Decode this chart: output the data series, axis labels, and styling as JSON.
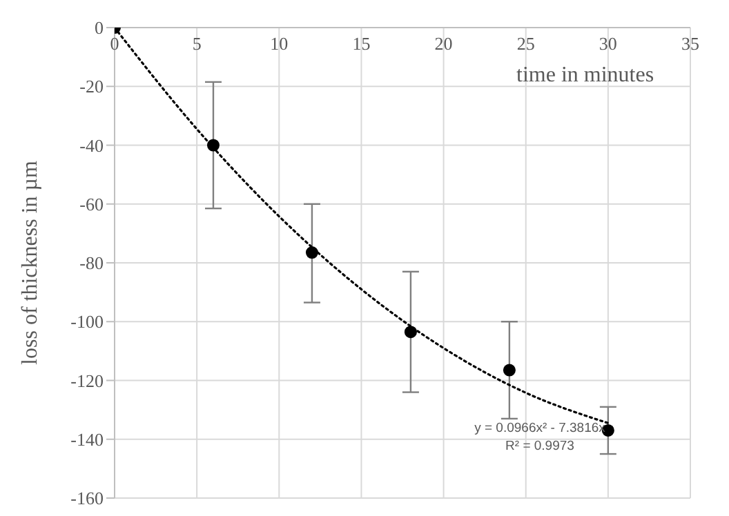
{
  "chart_data": {
    "type": "scatter",
    "xlabel": "time in minutes",
    "ylabel": "loss of thickness in µm",
    "xlim": [
      0,
      35
    ],
    "xticks": [
      0,
      5,
      10,
      15,
      20,
      25,
      30,
      35
    ],
    "ylim": [
      -160,
      0
    ],
    "yticks": [
      0,
      -20,
      -40,
      -60,
      -80,
      -100,
      -120,
      -140,
      -160
    ],
    "grid": true,
    "legend": false,
    "marker": "circle",
    "annotations": [
      "y = 0.0966x² - 7.3816x",
      "R² = 0.9973"
    ],
    "series": [
      {
        "color": "#000000",
        "x": [
          0,
          6,
          12,
          18,
          24,
          30
        ],
        "values": [
          0,
          -40,
          -76.5,
          -103.5,
          -116.5,
          -137
        ],
        "errors": [
          null,
          [
            -61.5,
            -18.5
          ],
          [
            -93.5,
            -60
          ],
          [
            -124,
            -83
          ],
          [
            -133,
            -100
          ],
          [
            -145,
            -129
          ]
        ]
      },
      {
        "type": "line",
        "color": "#000000",
        "line_style": "dotted",
        "marker": "none",
        "x": [
          0,
          5,
          10,
          15,
          20,
          25,
          30
        ],
        "values": [
          0,
          -34.5,
          -64.2,
          -89,
          -109,
          -124.2,
          -134.5
        ]
      }
    ]
  }
}
